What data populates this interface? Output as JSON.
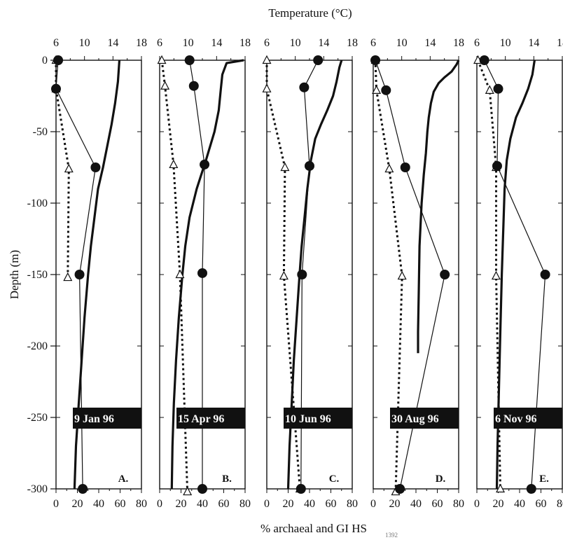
{
  "chart_data": {
    "type": "line",
    "top_axis_label": "Temperature (°C)",
    "bottom_axis_label": "% archaeal and GI HS",
    "bottom_axis_sub": "1392",
    "y_label": "Depth (m)",
    "y_ticks": [
      0,
      -50,
      -100,
      -150,
      -200,
      -250,
      -300
    ],
    "ylim": [
      -300,
      0
    ],
    "temp_ticks": [
      6,
      10,
      14,
      18
    ],
    "temp_ticks_d": [
      6,
      10,
      14,
      18
    ],
    "pct_ticks": [
      0,
      20,
      40,
      60,
      80
    ],
    "temp_range": [
      6,
      18
    ],
    "pct_range": [
      0,
      80
    ],
    "panels": [
      {
        "tag": "A.",
        "date": "9 Jan 96",
        "filled": [
          [
            2,
            0
          ],
          [
            0,
            -20
          ],
          [
            37,
            -75
          ],
          [
            22,
            -150
          ],
          [
            25,
            -300
          ]
        ],
        "open": [
          [
            0,
            0
          ],
          [
            0,
            -20
          ],
          [
            12,
            -76
          ],
          [
            11,
            -152
          ]
        ],
        "temperature": [
          [
            14.9,
            0
          ],
          [
            14.7,
            -15
          ],
          [
            14.3,
            -30
          ],
          [
            13.8,
            -45
          ],
          [
            13.2,
            -60
          ],
          [
            12.6,
            -75
          ],
          [
            11.9,
            -90
          ],
          [
            11.4,
            -110
          ],
          [
            10.9,
            -130
          ],
          [
            10.5,
            -150
          ],
          [
            10.0,
            -180
          ],
          [
            9.6,
            -210
          ],
          [
            9.2,
            -240
          ],
          [
            8.8,
            -270
          ],
          [
            8.6,
            -300
          ]
        ]
      },
      {
        "tag": "B.",
        "date": "15 Apr 96",
        "filled": [
          [
            28,
            0
          ],
          [
            32,
            -18
          ],
          [
            42,
            -73
          ],
          [
            40,
            -149
          ],
          [
            40,
            -300
          ]
        ],
        "open": [
          [
            2,
            0
          ],
          [
            5,
            -18
          ],
          [
            13,
            -73
          ],
          [
            19,
            -150
          ],
          [
            26,
            -302
          ]
        ],
        "temperature": [
          [
            17.8,
            0
          ],
          [
            15.4,
            -2
          ],
          [
            14.8,
            -10
          ],
          [
            14.6,
            -20
          ],
          [
            14.3,
            -35
          ],
          [
            13.7,
            -50
          ],
          [
            12.5,
            -70
          ],
          [
            11.2,
            -90
          ],
          [
            10.2,
            -110
          ],
          [
            9.6,
            -130
          ],
          [
            9.2,
            -150
          ],
          [
            8.7,
            -180
          ],
          [
            8.3,
            -210
          ],
          [
            8.0,
            -240
          ],
          [
            7.8,
            -270
          ],
          [
            7.7,
            -300
          ]
        ]
      },
      {
        "tag": "C.",
        "date": "10 Jun 96",
        "filled": [
          [
            48,
            0
          ],
          [
            35,
            -19
          ],
          [
            40,
            -74
          ],
          [
            33,
            -150
          ],
          [
            32,
            -300
          ]
        ],
        "open": [
          [
            0,
            0
          ],
          [
            0,
            -20
          ],
          [
            17,
            -75
          ],
          [
            16,
            -151
          ],
          [
            31,
            -300
          ]
        ],
        "temperature": [
          [
            16.5,
            0
          ],
          [
            16.2,
            -5
          ],
          [
            15.8,
            -15
          ],
          [
            15.3,
            -25
          ],
          [
            14.5,
            -35
          ],
          [
            13.6,
            -45
          ],
          [
            12.8,
            -55
          ],
          [
            12.2,
            -70
          ],
          [
            11.7,
            -90
          ],
          [
            11.3,
            -110
          ],
          [
            10.9,
            -130
          ],
          [
            10.6,
            -150
          ],
          [
            10.2,
            -180
          ],
          [
            9.8,
            -210
          ],
          [
            9.5,
            -240
          ],
          [
            9.2,
            -270
          ],
          [
            9.0,
            -300
          ]
        ]
      },
      {
        "tag": "D.",
        "date": "30 Aug 96",
        "filled": [
          [
            2,
            0
          ],
          [
            12,
            -21
          ],
          [
            30,
            -75
          ],
          [
            67,
            -150
          ],
          [
            25,
            -300
          ]
        ],
        "open": [
          [
            2,
            0
          ],
          [
            3,
            -21
          ],
          [
            15,
            -76
          ],
          [
            27,
            -151
          ],
          [
            21,
            -302
          ]
        ],
        "temperature": [
          [
            18.0,
            0
          ],
          [
            17.7,
            -3
          ],
          [
            17.0,
            -8
          ],
          [
            16.0,
            -12
          ],
          [
            15.2,
            -16
          ],
          [
            14.5,
            -22
          ],
          [
            14.1,
            -30
          ],
          [
            13.8,
            -40
          ],
          [
            13.6,
            -50
          ],
          [
            13.4,
            -65
          ],
          [
            13.1,
            -80
          ],
          [
            12.8,
            -100
          ],
          [
            12.5,
            -130
          ],
          [
            12.4,
            -160
          ],
          [
            12.3,
            -190
          ],
          [
            12.3,
            -205
          ]
        ]
      },
      {
        "tag": "E.",
        "date": "6 Nov 96",
        "filled": [
          [
            7,
            0
          ],
          [
            20,
            -20
          ],
          [
            19,
            -74
          ],
          [
            64,
            -150
          ],
          [
            51,
            -300
          ]
        ],
        "open": [
          [
            1,
            0
          ],
          [
            12,
            -21
          ],
          [
            18,
            -75
          ],
          [
            18,
            -151
          ],
          [
            22,
            -300
          ]
        ],
        "temperature": [
          [
            14.1,
            0
          ],
          [
            13.8,
            -10
          ],
          [
            13.2,
            -20
          ],
          [
            12.4,
            -30
          ],
          [
            11.5,
            -40
          ],
          [
            10.7,
            -55
          ],
          [
            10.2,
            -70
          ],
          [
            9.9,
            -90
          ],
          [
            9.7,
            -120
          ],
          [
            9.5,
            -150
          ],
          [
            9.3,
            -190
          ],
          [
            9.1,
            -230
          ],
          [
            8.9,
            -270
          ],
          [
            8.8,
            -300
          ]
        ]
      }
    ]
  }
}
